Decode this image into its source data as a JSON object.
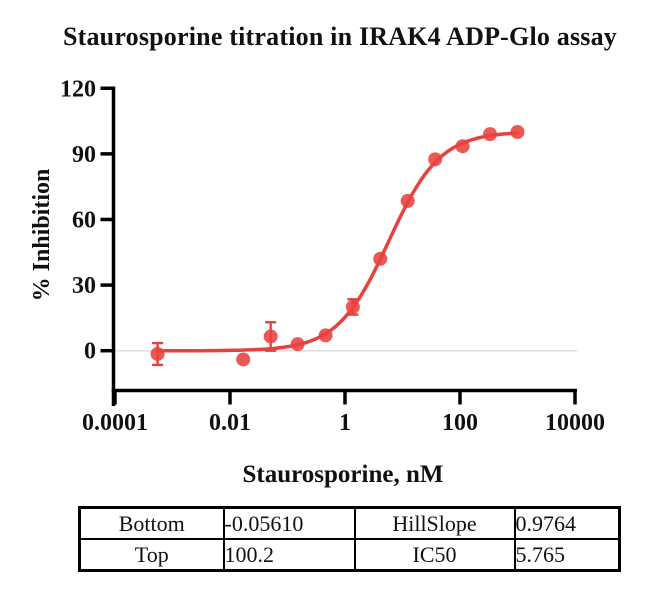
{
  "title": "Staurosporine titration in IRAK4 ADP-Glo assay",
  "chart_data": {
    "type": "scatter",
    "title": "Staurosporine titration in IRAK4 ADP-Glo assay",
    "xlabel": "Staurosporine, nM",
    "ylabel": "% Inhibition",
    "x_scale": "log10",
    "grid": "off",
    "legend": "none",
    "x_tick_labels": [
      "0.0001",
      "0.01",
      "1",
      "100",
      "10000"
    ],
    "x_tick_logs": [
      -4,
      -2,
      0,
      2,
      4
    ],
    "y_ticks": [
      0,
      30,
      60,
      90,
      120
    ],
    "y_axis_range": [
      0,
      120
    ],
    "points": [
      {
        "conc_nM": 0.00055,
        "inhibition": -1.5,
        "error": 5
      },
      {
        "conc_nM": 0.017,
        "inhibition": -4,
        "error": 0
      },
      {
        "conc_nM": 0.051,
        "inhibition": 6.5,
        "error": 6.5
      },
      {
        "conc_nM": 0.15,
        "inhibition": 3,
        "error": 0
      },
      {
        "conc_nM": 0.46,
        "inhibition": 7,
        "error": 0
      },
      {
        "conc_nM": 1.37,
        "inhibition": 20,
        "error": 3.5
      },
      {
        "conc_nM": 4.1,
        "inhibition": 42,
        "error": 0
      },
      {
        "conc_nM": 12.3,
        "inhibition": 68.5,
        "error": 0
      },
      {
        "conc_nM": 37,
        "inhibition": 87.5,
        "error": 0
      },
      {
        "conc_nM": 111,
        "inhibition": 93.5,
        "error": 0
      },
      {
        "conc_nM": 333,
        "inhibition": 99,
        "error": 0
      },
      {
        "conc_nM": 1000,
        "inhibition": 100,
        "error": 0
      }
    ],
    "fit": {
      "model": "4PL",
      "bottom": -0.0561,
      "top": 100.2,
      "hillslope": 0.9764,
      "ic50_nM": 5.765
    },
    "curve_color": "#E8413D",
    "marker_color": "#E8413D",
    "error_bar_color": "#E8413D",
    "zero_line_color": "#DEDEDE",
    "axis_color": "#000000"
  },
  "fit_table": {
    "rows": [
      {
        "label1": "Bottom",
        "value1": "-0.05610",
        "label2": "HillSlope",
        "value2": "0.9764"
      },
      {
        "label1": "Top",
        "value1": "100.2",
        "label2": "IC50",
        "value2": "5.765"
      }
    ]
  }
}
